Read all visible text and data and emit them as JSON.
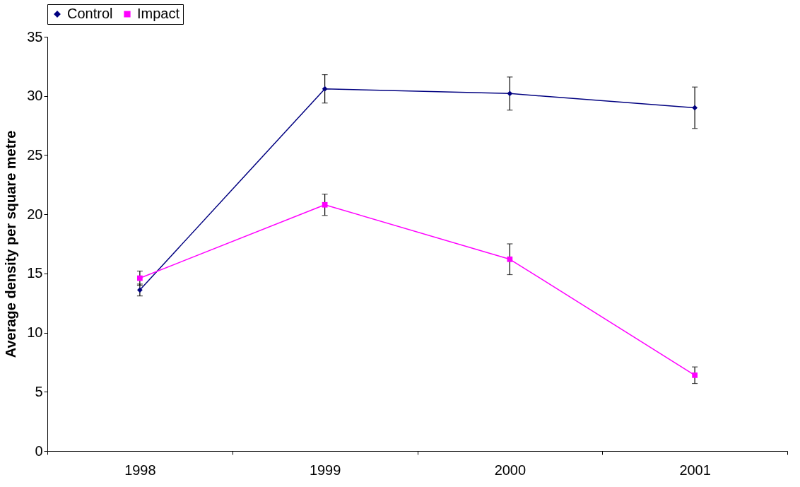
{
  "chart_data": {
    "type": "line",
    "ylabel": "Average density per square metre",
    "categories": [
      "1998",
      "1999",
      "2000",
      "2001"
    ],
    "ylim": [
      0,
      35
    ],
    "yticks": [
      0,
      5,
      10,
      15,
      20,
      25,
      30,
      35
    ],
    "grid": false,
    "legend": "top",
    "series": [
      {
        "name": "Control",
        "color": "#000080",
        "marker": "diamond",
        "values": [
          13.6,
          30.6,
          30.2,
          29.0
        ],
        "errors": [
          0.5,
          1.2,
          1.4,
          1.75
        ]
      },
      {
        "name": "Impact",
        "color": "#ff00ff",
        "marker": "square",
        "values": [
          14.6,
          20.8,
          16.2,
          6.4
        ],
        "errors": [
          0.6,
          0.9,
          1.3,
          0.7
        ]
      }
    ]
  }
}
